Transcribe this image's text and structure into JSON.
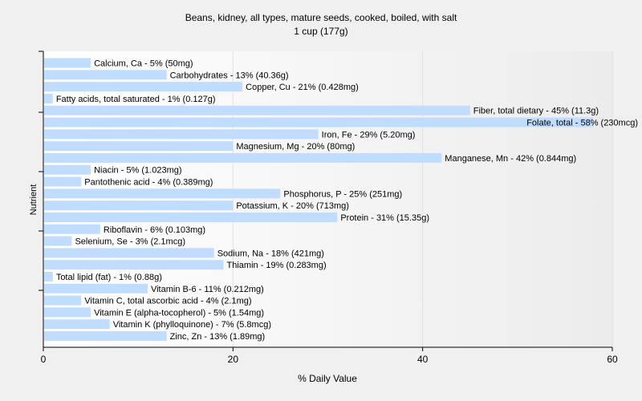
{
  "chart_data": {
    "type": "bar",
    "orientation": "horizontal",
    "title": "Beans, kidney, all types, mature seeds, cooked, boiled, with salt",
    "subtitle": "1 cup (177g)",
    "xlabel": "% Daily Value",
    "ylabel": "Nutrient",
    "xlim": [
      0,
      60
    ],
    "xticks": [
      "0",
      "20",
      "40",
      "60"
    ],
    "grid": true,
    "bar_color": "#c0dcff",
    "categories": [
      "Calcium, Ca",
      "Carbohydrates",
      "Copper, Cu",
      "Fatty acids, total saturated",
      "Fiber, total dietary",
      "Folate, total",
      "Iron, Fe",
      "Magnesium, Mg",
      "Manganese, Mn",
      "Niacin",
      "Pantothenic acid",
      "Phosphorus, P",
      "Potassium, K",
      "Protein",
      "Riboflavin",
      "Selenium, Se",
      "Sodium, Na",
      "Thiamin",
      "Total lipid (fat)",
      "Vitamin B-6",
      "Vitamin C, total ascorbic acid",
      "Vitamin E (alpha-tocopherol)",
      "Vitamin K (phylloquinone)",
      "Zinc, Zn"
    ],
    "values": [
      5,
      13,
      21,
      1,
      45,
      58,
      29,
      20,
      42,
      5,
      4,
      25,
      20,
      31,
      6,
      3,
      18,
      19,
      1,
      11,
      4,
      5,
      7,
      13
    ],
    "labels": [
      "Calcium, Ca - 5% (50mg)",
      "Carbohydrates - 13% (40.36g)",
      "Copper, Cu - 21% (0.428mg)",
      "Fatty acids, total saturated - 1% (0.127g)",
      "Fiber, total dietary - 45% (11.3g)",
      "Folate, total - 58% (230mcg)",
      "Iron, Fe - 29% (5.20mg)",
      "Magnesium, Mg - 20% (80mg)",
      "Manganese, Mn - 42% (0.844mg)",
      "Niacin - 5% (1.023mg)",
      "Pantothenic acid - 4% (0.389mg)",
      "Phosphorus, P - 25% (251mg)",
      "Potassium, K - 20% (713mg)",
      "Protein - 31% (15.35g)",
      "Riboflavin - 6% (0.103mg)",
      "Selenium, Se - 3% (2.1mcg)",
      "Sodium, Na - 18% (421mg)",
      "Thiamin - 19% (0.283mg)",
      "Total lipid (fat) - 1% (0.88g)",
      "Vitamin B-6 - 11% (0.212mg)",
      "Vitamin C, total ascorbic acid - 4% (2.1mg)",
      "Vitamin E (alpha-tocopherol) - 5% (1.54mg)",
      "Vitamin K (phylloquinone) - 7% (5.8mcg)",
      "Zinc, Zn - 13% (1.89mg)"
    ]
  }
}
